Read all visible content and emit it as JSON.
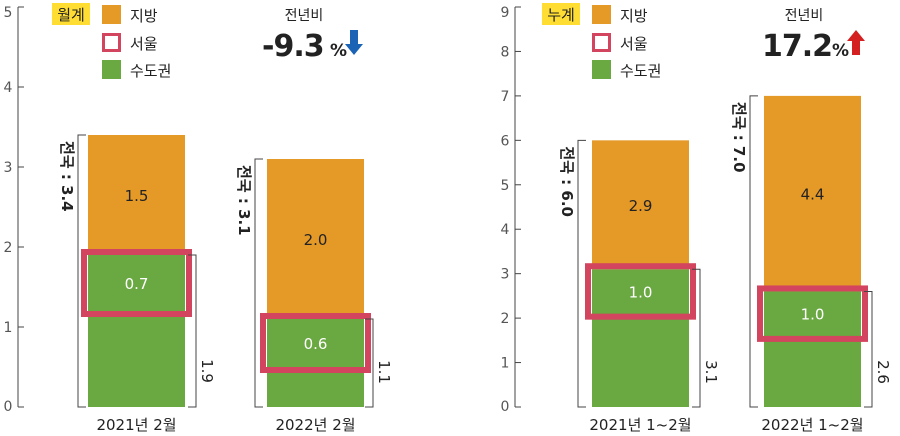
{
  "chart_data": [
    {
      "type": "bar",
      "stacked": true,
      "badge": "월계",
      "legend": [
        "지방",
        "서울",
        "수도권"
      ],
      "yoy_label": "전년비",
      "yoy_value": "-9.3",
      "yoy_unit": "%",
      "yoy_direction": "down",
      "ylim": [
        0,
        5
      ],
      "y_ticks": [
        "0",
        "1",
        "2",
        "3",
        "4",
        "5"
      ],
      "categories": [
        "2021년 2월",
        "2022년 2월"
      ],
      "series": [
        {
          "name": "수도권",
          "values": [
            1.9,
            1.1
          ]
        },
        {
          "name": "지방",
          "values": [
            1.5,
            2.0
          ]
        }
      ],
      "seoul": [
        0.7,
        0.6
      ],
      "bar_labels": {
        "jibang": [
          "1.5",
          "2.0"
        ],
        "seoul": [
          "0.7",
          "0.6"
        ],
        "sudo": [
          "1.9",
          "1.1"
        ],
        "total": [
          "전국 : 3.4",
          "전국 : 3.1"
        ]
      },
      "totals": [
        3.4,
        3.1
      ]
    },
    {
      "type": "bar",
      "stacked": true,
      "badge": "누계",
      "legend": [
        "지방",
        "서울",
        "수도권"
      ],
      "yoy_label": "전년비",
      "yoy_value": "17.2",
      "yoy_unit": "%",
      "yoy_direction": "up",
      "ylim": [
        0,
        9
      ],
      "y_ticks": [
        "0",
        "1",
        "2",
        "3",
        "4",
        "5",
        "6",
        "7",
        "8",
        "9"
      ],
      "categories": [
        "2021년 1~2월",
        "2022년 1~2월"
      ],
      "series": [
        {
          "name": "수도권",
          "values": [
            3.1,
            2.6
          ]
        },
        {
          "name": "지방",
          "values": [
            2.9,
            4.4
          ]
        }
      ],
      "seoul": [
        1.0,
        1.0
      ],
      "bar_labels": {
        "jibang": [
          "2.9",
          "4.4"
        ],
        "seoul": [
          "1.0",
          "1.0"
        ],
        "sudo": [
          "3.1",
          "2.6"
        ],
        "total": [
          "전국 : 6.0",
          "전국 : 7.0"
        ]
      },
      "totals": [
        6.0,
        7.0
      ]
    }
  ],
  "colors": {
    "jibang": "#e59a28",
    "sudo": "#6aa842",
    "seoul_border": "#d3445e",
    "badge_bg": "#ffdd33",
    "down_arrow": "#1b63b5",
    "up_arrow": "#d42020",
    "axis": "#444444",
    "text": "#222222"
  }
}
